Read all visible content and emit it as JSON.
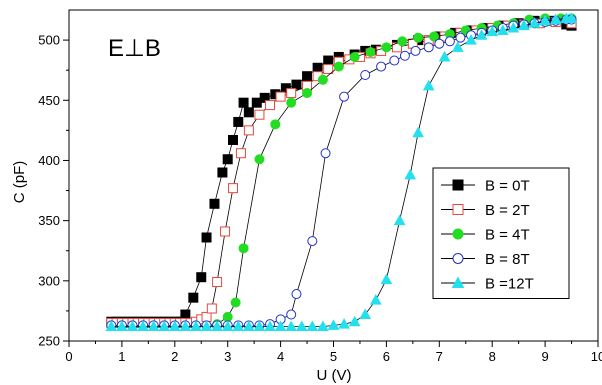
{
  "chart_data": {
    "type": "scatter",
    "annotation": "E⊥B",
    "xlabel": "U (V)",
    "ylabel": "C (pF)",
    "xlim": [
      0,
      10
    ],
    "ylim": [
      250,
      525
    ],
    "xticks": [
      "0",
      "1",
      "2",
      "3",
      "4",
      "5",
      "6",
      "7",
      "8",
      "9",
      "10"
    ],
    "yticks": [
      "250",
      "300",
      "350",
      "400",
      "450",
      "500"
    ],
    "grid": false,
    "legend_position": "lower-right",
    "series": [
      {
        "name": "B = 0T",
        "marker": "square",
        "filled": true,
        "color": "#000000",
        "points": [
          [
            0.8,
            266
          ],
          [
            0.9,
            266
          ],
          [
            1.0,
            266
          ],
          [
            1.1,
            266
          ],
          [
            1.2,
            266
          ],
          [
            1.3,
            266
          ],
          [
            1.4,
            266
          ],
          [
            1.5,
            266
          ],
          [
            1.6,
            266
          ],
          [
            1.7,
            266
          ],
          [
            1.8,
            266
          ],
          [
            1.9,
            266
          ],
          [
            2.0,
            266
          ],
          [
            2.1,
            266
          ],
          [
            2.2,
            272
          ],
          [
            2.35,
            286
          ],
          [
            2.5,
            303
          ],
          [
            2.6,
            336
          ],
          [
            2.75,
            364
          ],
          [
            2.9,
            390
          ],
          [
            3.0,
            401
          ],
          [
            3.1,
            417
          ],
          [
            3.2,
            432
          ],
          [
            3.3,
            448
          ],
          [
            3.4,
            440
          ],
          [
            3.55,
            448
          ],
          [
            3.7,
            452
          ],
          [
            3.9,
            455
          ],
          [
            4.1,
            460
          ],
          [
            4.3,
            463
          ],
          [
            4.5,
            470
          ],
          [
            4.7,
            477
          ],
          [
            4.9,
            483
          ],
          [
            5.1,
            486
          ],
          [
            5.4,
            488
          ],
          [
            5.6,
            491
          ],
          [
            5.8,
            492
          ],
          [
            6.2,
            496
          ],
          [
            6.6,
            500
          ],
          [
            7.0,
            503
          ],
          [
            7.3,
            506
          ],
          [
            7.6,
            508
          ],
          [
            7.9,
            510
          ],
          [
            8.2,
            512
          ],
          [
            8.5,
            514
          ],
          [
            8.8,
            516
          ],
          [
            9.1,
            516
          ],
          [
            9.4,
            513
          ],
          [
            9.5,
            512
          ]
        ]
      },
      {
        "name": "B = 2T",
        "marker": "square",
        "filled": false,
        "color": "#e8483c",
        "points": [
          [
            0.8,
            265
          ],
          [
            0.9,
            265
          ],
          [
            1.0,
            265
          ],
          [
            1.1,
            265
          ],
          [
            1.2,
            265
          ],
          [
            1.3,
            265
          ],
          [
            1.4,
            265
          ],
          [
            1.5,
            265
          ],
          [
            1.6,
            265
          ],
          [
            1.7,
            265
          ],
          [
            1.8,
            265
          ],
          [
            1.9,
            265
          ],
          [
            2.0,
            265
          ],
          [
            2.1,
            265
          ],
          [
            2.2,
            265
          ],
          [
            2.3,
            265
          ],
          [
            2.4,
            266
          ],
          [
            2.5,
            268
          ],
          [
            2.6,
            270
          ],
          [
            2.7,
            277
          ],
          [
            2.8,
            299
          ],
          [
            2.95,
            341
          ],
          [
            3.1,
            377
          ],
          [
            3.25,
            406
          ],
          [
            3.4,
            425
          ],
          [
            3.6,
            438
          ],
          [
            3.8,
            446
          ],
          [
            4.0,
            453
          ],
          [
            4.2,
            456
          ],
          [
            4.5,
            462
          ],
          [
            4.7,
            470
          ],
          [
            4.9,
            476
          ],
          [
            5.1,
            482
          ],
          [
            5.3,
            484
          ],
          [
            5.5,
            486
          ],
          [
            5.7,
            489
          ],
          [
            5.9,
            491
          ],
          [
            6.2,
            494
          ],
          [
            6.5,
            497
          ],
          [
            6.8,
            500
          ],
          [
            7.1,
            503
          ],
          [
            7.4,
            506
          ],
          [
            7.7,
            508
          ],
          [
            8.0,
            510
          ],
          [
            8.3,
            512
          ],
          [
            8.6,
            513
          ],
          [
            8.9,
            514
          ],
          [
            9.2,
            515
          ],
          [
            9.5,
            514
          ]
        ]
      },
      {
        "name": "B = 4T",
        "marker": "circle",
        "filled": true,
        "color": "#22dd22",
        "points": [
          [
            0.8,
            263
          ],
          [
            1.0,
            263
          ],
          [
            1.2,
            263
          ],
          [
            1.4,
            263
          ],
          [
            1.6,
            263
          ],
          [
            1.8,
            263
          ],
          [
            2.0,
            263
          ],
          [
            2.2,
            263
          ],
          [
            2.4,
            263
          ],
          [
            2.6,
            263
          ],
          [
            2.8,
            264
          ],
          [
            3.0,
            270
          ],
          [
            3.15,
            282
          ],
          [
            3.3,
            327
          ],
          [
            3.6,
            401
          ],
          [
            3.9,
            430
          ],
          [
            4.2,
            448
          ],
          [
            4.5,
            456
          ],
          [
            4.8,
            467
          ],
          [
            5.1,
            478
          ],
          [
            5.4,
            486
          ],
          [
            5.7,
            490
          ],
          [
            6.0,
            494
          ],
          [
            6.3,
            499
          ],
          [
            6.6,
            502
          ],
          [
            6.9,
            503
          ],
          [
            7.2,
            505
          ],
          [
            7.5,
            508
          ],
          [
            7.8,
            510
          ],
          [
            8.1,
            512
          ],
          [
            8.4,
            514
          ],
          [
            8.7,
            517
          ],
          [
            9.0,
            518
          ],
          [
            9.3,
            518
          ],
          [
            9.5,
            518
          ]
        ]
      },
      {
        "name": "B = 8T",
        "marker": "circle",
        "filled": false,
        "color": "#2233cc",
        "points": [
          [
            0.8,
            263
          ],
          [
            1.0,
            263
          ],
          [
            1.2,
            263
          ],
          [
            1.4,
            263
          ],
          [
            1.6,
            263
          ],
          [
            1.8,
            263
          ],
          [
            2.0,
            263
          ],
          [
            2.2,
            263
          ],
          [
            2.4,
            263
          ],
          [
            2.6,
            263
          ],
          [
            2.8,
            263
          ],
          [
            3.0,
            263
          ],
          [
            3.2,
            263
          ],
          [
            3.4,
            263
          ],
          [
            3.6,
            263
          ],
          [
            3.8,
            264
          ],
          [
            4.0,
            268
          ],
          [
            4.2,
            272
          ],
          [
            4.3,
            289
          ],
          [
            4.6,
            333
          ],
          [
            4.85,
            406
          ],
          [
            5.2,
            453
          ],
          [
            5.6,
            471
          ],
          [
            5.9,
            478
          ],
          [
            6.15,
            483
          ],
          [
            6.35,
            487
          ],
          [
            6.55,
            491
          ],
          [
            6.8,
            494
          ],
          [
            7.0,
            497
          ],
          [
            7.2,
            499
          ],
          [
            7.4,
            502
          ],
          [
            7.6,
            504
          ],
          [
            7.8,
            506
          ],
          [
            8.0,
            508
          ],
          [
            8.2,
            510
          ],
          [
            8.4,
            512
          ],
          [
            8.6,
            513
          ],
          [
            8.8,
            514
          ],
          [
            9.0,
            515
          ],
          [
            9.2,
            516
          ],
          [
            9.4,
            517
          ],
          [
            9.5,
            517
          ]
        ]
      },
      {
        "name": "B =12T",
        "marker": "triangle",
        "filled": true,
        "color": "#22e0ee",
        "points": [
          [
            0.8,
            262
          ],
          [
            1.0,
            262
          ],
          [
            1.2,
            262
          ],
          [
            1.4,
            262
          ],
          [
            1.6,
            262
          ],
          [
            1.8,
            262
          ],
          [
            2.0,
            262
          ],
          [
            2.2,
            262
          ],
          [
            2.4,
            262
          ],
          [
            2.6,
            262
          ],
          [
            2.8,
            262
          ],
          [
            3.0,
            262
          ],
          [
            3.2,
            262
          ],
          [
            3.4,
            262
          ],
          [
            3.6,
            262
          ],
          [
            3.8,
            262
          ],
          [
            4.0,
            262
          ],
          [
            4.2,
            262
          ],
          [
            4.4,
            262
          ],
          [
            4.6,
            262
          ],
          [
            4.8,
            262
          ],
          [
            5.0,
            263
          ],
          [
            5.2,
            264
          ],
          [
            5.4,
            266
          ],
          [
            5.6,
            272
          ],
          [
            5.8,
            284
          ],
          [
            6.0,
            301
          ],
          [
            6.25,
            350
          ],
          [
            6.45,
            388
          ],
          [
            6.6,
            423
          ],
          [
            6.8,
            462
          ],
          [
            7.1,
            486
          ],
          [
            7.35,
            494
          ],
          [
            7.6,
            500
          ],
          [
            7.8,
            504
          ],
          [
            8.0,
            507
          ],
          [
            8.2,
            508
          ],
          [
            8.4,
            510
          ],
          [
            8.6,
            512
          ],
          [
            8.8,
            514
          ],
          [
            9.0,
            516
          ],
          [
            9.2,
            517
          ],
          [
            9.4,
            518
          ],
          [
            9.5,
            518
          ]
        ]
      }
    ]
  }
}
